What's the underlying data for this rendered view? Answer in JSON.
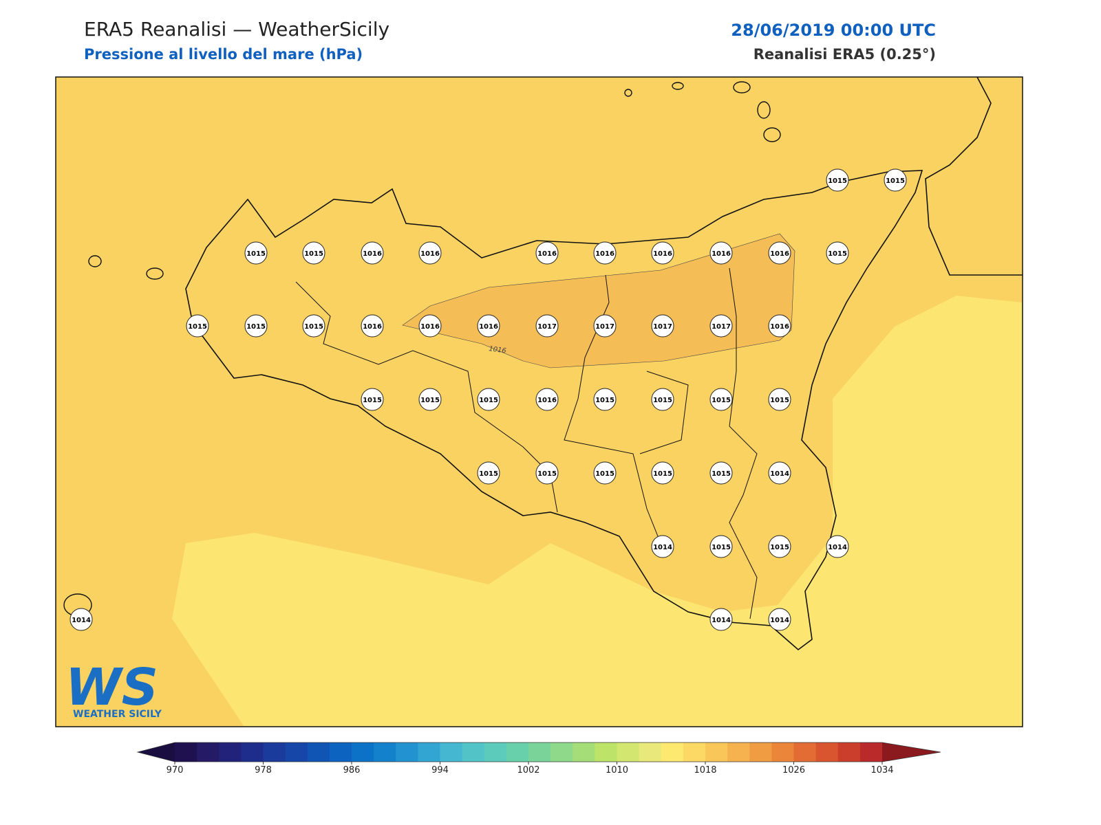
{
  "header": {
    "title": "ERA5 Reanalisi — WeatherSicily",
    "subtitle": "Pressione al livello del mare (hPa)",
    "date": "28/06/2019 00:00 UTC",
    "source": "Reanalisi ERA5 (0.25°)"
  },
  "map": {
    "contour_label": "1016",
    "stations": [
      1015,
      1015,
      1015,
      1015,
      1016,
      1016,
      1016,
      1016,
      1016,
      1016,
      1016,
      1015,
      1015,
      1015,
      1015,
      1016,
      1016,
      1016,
      1017,
      1017,
      1017,
      1017,
      1016,
      1015,
      1015,
      1015,
      1016,
      1015,
      1015,
      1015,
      1015,
      1015,
      1015,
      1015,
      1015,
      1015,
      1014,
      1014,
      1015,
      1015,
      1014,
      1014,
      1014,
      1014
    ]
  },
  "colorbar": {
    "range": [
      970,
      1034
    ],
    "ticks": [
      970,
      978,
      986,
      994,
      1002,
      1010,
      1018,
      1026,
      1034
    ],
    "colors": [
      "#1f1150",
      "#241a66",
      "#22227a",
      "#1e2d8c",
      "#1a3a9c",
      "#1647a8",
      "#1155b4",
      "#0d63c0",
      "#0b72c8",
      "#1481cc",
      "#2293d0",
      "#33a5d2",
      "#45b7d0",
      "#52c4c8",
      "#5ccbbb",
      "#68d0ab",
      "#7ad49a",
      "#8fd98a",
      "#a5de78",
      "#bde369",
      "#d3e670",
      "#e8e97a",
      "#fde870",
      "#fcd865",
      "#f9c65a",
      "#f5b24e",
      "#f09c43",
      "#ea853a",
      "#e26c33",
      "#d8552f",
      "#cb3e2c",
      "#bb2a2a"
    ],
    "extend_colors": [
      "#1a0d3f",
      "#8b1a1f"
    ]
  },
  "logo": {
    "mark": "WS",
    "name": "WEATHER SICILY"
  }
}
